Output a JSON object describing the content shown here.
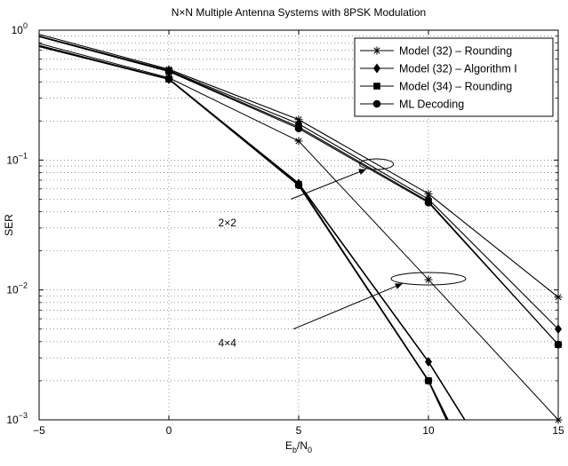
{
  "chart_data": {
    "type": "line",
    "title": "N×N Multiple Antenna Systems with 8PSK Modulation",
    "xlabel": "E_b/N_0",
    "xlabel_parts": {
      "base": "E",
      "sub1": "b",
      "sep": "/N",
      "sub2": "0"
    },
    "ylabel": "SER",
    "xlim": [
      -5,
      15
    ],
    "ylim": [
      0.001,
      1
    ],
    "yscale": "log",
    "grid": true,
    "legend_position": "top-right",
    "x_ticks": [
      "−5",
      "0",
      "5",
      "10",
      "15"
    ],
    "y_ticks": [
      {
        "value": 1,
        "base": "10",
        "exp": "0"
      },
      {
        "value": 0.1,
        "base": "10",
        "exp": "−1"
      },
      {
        "value": 0.01,
        "base": "10",
        "exp": "−2"
      },
      {
        "value": 0.001,
        "base": "10",
        "exp": "−3"
      }
    ],
    "series": [
      {
        "name": "Model (32) – Rounding",
        "marker": "star",
        "group": "2x2",
        "lw": 1.1,
        "points": [
          [
            -5,
            0.93
          ],
          [
            0,
            0.5
          ],
          [
            5,
            0.205
          ],
          [
            10,
            0.055
          ],
          [
            15,
            0.0088
          ]
        ]
      },
      {
        "name": "Model (32) – Algorithm I",
        "marker": "diamond",
        "group": "2x2",
        "lw": 1.1,
        "points": [
          [
            -5,
            0.9
          ],
          [
            0,
            0.49
          ],
          [
            5,
            0.19
          ],
          [
            10,
            0.05
          ],
          [
            15,
            0.005
          ]
        ]
      },
      {
        "name": "Model (34) – Rounding",
        "marker": "square",
        "group": "2x2",
        "lw": 1.1,
        "points": [
          [
            -5,
            0.9
          ],
          [
            0,
            0.485
          ],
          [
            5,
            0.18
          ],
          [
            10,
            0.048
          ],
          [
            15,
            0.0038
          ]
        ]
      },
      {
        "name": "ML Decoding",
        "marker": "circle",
        "group": "2x2",
        "lw": 1.1,
        "points": [
          [
            -5,
            0.89
          ],
          [
            0,
            0.48
          ],
          [
            5,
            0.175
          ],
          [
            10,
            0.047
          ],
          [
            15,
            0.0038
          ]
        ]
      },
      {
        "marker": "star",
        "group": "4x4",
        "lw": 1.0,
        "points": [
          [
            -5,
            0.79
          ],
          [
            0,
            0.43
          ],
          [
            5,
            0.14
          ],
          [
            10,
            0.012
          ],
          [
            15,
            0.001
          ]
        ]
      },
      {
        "marker": "diamond",
        "group": "4x4",
        "lw": 1.6,
        "points": [
          [
            -5,
            0.76
          ],
          [
            0,
            0.42
          ],
          [
            5,
            0.066
          ],
          [
            10,
            0.0028
          ],
          [
            11.4,
            0.001
          ]
        ]
      },
      {
        "marker": "square",
        "group": "4x4",
        "lw": 1.6,
        "points": [
          [
            -5,
            0.75
          ],
          [
            0,
            0.42
          ],
          [
            5,
            0.065
          ],
          [
            10,
            0.002
          ],
          [
            10.75,
            0.001
          ]
        ]
      },
      {
        "marker": "circle",
        "group": "4x4",
        "lw": 1.6,
        "points": [
          [
            -5,
            0.75
          ],
          [
            0,
            0.42
          ],
          [
            5,
            0.064
          ],
          [
            10,
            0.002
          ],
          [
            10.7,
            0.001
          ]
        ]
      }
    ],
    "annotations": [
      {
        "label": "2×2",
        "ellipse_center": [
          8,
          0.093
        ],
        "text_at": [
          2.6,
          0.033
        ],
        "arrow_from": [
          4.7,
          0.05
        ],
        "arrow_to": [
          7.6,
          0.085
        ]
      },
      {
        "label": "4×4",
        "ellipse_center": [
          10,
          0.0122
        ],
        "text_at": [
          2.6,
          0.0039
        ],
        "arrow_from": [
          4.8,
          0.005
        ],
        "arrow_to": [
          9.0,
          0.0112
        ]
      }
    ]
  }
}
